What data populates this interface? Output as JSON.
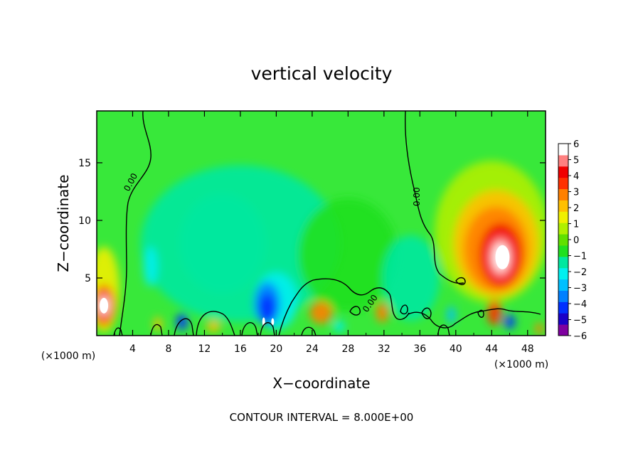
{
  "chart_data": {
    "type": "heatmap",
    "title": "vertical velocity",
    "xlabel": "X−coordinate",
    "ylabel": "Z−coordinate",
    "xlim": [
      0,
      50
    ],
    "ylim": [
      0,
      19.5
    ],
    "x_ticks": [
      "4",
      "8",
      "12",
      "16",
      "20",
      "24",
      "28",
      "32",
      "36",
      "40",
      "44",
      "48"
    ],
    "y_ticks": [
      "5",
      "10",
      "15"
    ],
    "x_unit": "(×1000 m)",
    "y_unit": "(×1000 m)",
    "footer": "CONTOUR INTERVAL = 8.000E+00",
    "colorbar": {
      "labels": [
        "6",
        "5",
        "4",
        "3",
        "2",
        "1",
        "0",
        "−1",
        "−2",
        "−3",
        "−4",
        "−5",
        "−6"
      ],
      "range": [
        -6,
        6
      ],
      "colors": [
        "#7f00a0",
        "#1a00c8",
        "#0030ff",
        "#0080ff",
        "#00c0ff",
        "#00f0f0",
        "#00e8a0",
        "#20e020",
        "#60e000",
        "#b0f000",
        "#f0f000",
        "#ffc000",
        "#ff8000",
        "#ff3000",
        "#f00000",
        "#ff8080",
        "#ffffff"
      ]
    },
    "contour_label": "0.00",
    "features": [
      {
        "x": 0.8,
        "z": 2.6,
        "w": 6.5
      },
      {
        "x": 45,
        "z": 6.8,
        "w": 6.5
      },
      {
        "x": 44.5,
        "z": 2.0,
        "w": 4.0
      },
      {
        "x": 19,
        "z": 2.8,
        "w": -4.8
      },
      {
        "x": 18.6,
        "z": 1.2,
        "w": 6.0
      },
      {
        "x": 9.5,
        "z": 1.2,
        "w": -4.5
      },
      {
        "x": 46,
        "z": 1.2,
        "w": -4.5
      },
      {
        "x": 6,
        "z": 6,
        "w": -2.2
      },
      {
        "x": 25,
        "z": 2.0,
        "w": 3.0
      },
      {
        "x": 31.8,
        "z": 2.0,
        "w": 3.0
      }
    ]
  }
}
